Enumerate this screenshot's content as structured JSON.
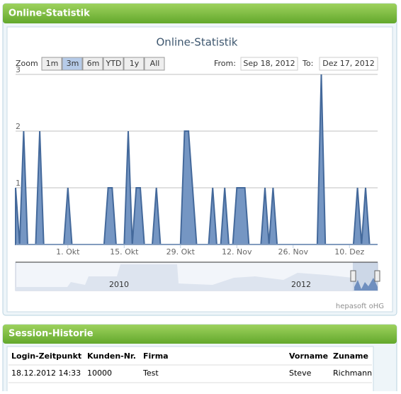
{
  "panels": {
    "statistik": "Online-Statistik",
    "historie": "Session-Historie"
  },
  "range_selector": {
    "zoom_label": "Zoom",
    "buttons": [
      "1m",
      "3m",
      "6m",
      "YTD",
      "1y",
      "All"
    ],
    "selected": "3m",
    "from_label": "From:",
    "from": "Sep 18, 2012",
    "to_label": "To:",
    "to": "Dez 17, 2012"
  },
  "navigator": {
    "labels": [
      "2010",
      "2012"
    ]
  },
  "credits": "hepasoft oHG",
  "chart_data": {
    "type": "area",
    "title": "Online-Statistik",
    "color": "#7596c3",
    "line_color": "#44699b",
    "grid": true,
    "x": [
      "2012-09-18",
      "2012-09-19",
      "2012-09-20",
      "2012-09-21",
      "2012-09-23",
      "2012-09-24",
      "2012-09-25",
      "2012-09-30",
      "2012-10-01",
      "2012-10-02",
      "2012-10-10",
      "2012-10-11",
      "2012-10-12",
      "2012-10-13",
      "2012-10-15",
      "2012-10-16",
      "2012-10-17",
      "2012-10-18",
      "2012-10-19",
      "2012-10-20",
      "2012-10-22",
      "2012-10-23",
      "2012-10-24",
      "2012-10-29",
      "2012-10-30",
      "2012-10-31",
      "2012-11-01",
      "2012-11-02",
      "2012-11-05",
      "2012-11-06",
      "2012-11-07",
      "2012-11-08",
      "2012-11-09",
      "2012-11-10",
      "2012-11-11",
      "2012-11-12",
      "2012-11-13",
      "2012-11-14",
      "2012-11-15",
      "2012-11-18",
      "2012-11-19",
      "2012-11-20",
      "2012-11-21",
      "2012-11-22",
      "2012-12-02",
      "2012-12-03",
      "2012-12-04",
      "2012-12-11",
      "2012-12-12",
      "2012-12-13",
      "2012-12-14",
      "2012-12-15",
      "2012-12-17"
    ],
    "values": [
      1,
      0,
      2,
      0,
      0,
      2,
      0,
      0,
      1,
      0,
      0,
      1,
      1,
      0,
      0,
      2,
      0,
      1,
      1,
      0,
      0,
      1,
      0,
      0,
      2,
      2,
      1,
      0,
      0,
      1,
      0,
      0,
      1,
      0,
      0,
      1,
      1,
      1,
      0,
      0,
      1,
      0,
      1,
      0,
      0,
      3,
      0,
      0,
      1,
      0,
      1,
      0,
      0
    ],
    "xlim": [
      "2012-09-18",
      "2012-12-17"
    ],
    "xticks": [
      {
        "value": "2012-10-01",
        "label": "1. Okt"
      },
      {
        "value": "2012-10-15",
        "label": "15. Okt"
      },
      {
        "value": "2012-10-29",
        "label": "29. Okt"
      },
      {
        "value": "2012-11-12",
        "label": "12. Nov"
      },
      {
        "value": "2012-11-26",
        "label": "26. Nov"
      },
      {
        "value": "2012-12-10",
        "label": "10. Dez"
      }
    ],
    "ylim": [
      0,
      3
    ],
    "yticks": [
      1,
      2,
      3
    ]
  },
  "table": {
    "header": [
      "Login-Zeitpunkt",
      "Kunden-Nr.",
      "Firma",
      "Vorname",
      "Zuname"
    ],
    "rows": [
      [
        "18.12.2012 14:33",
        "10000",
        "Test",
        "Steve",
        "Richmann"
      ]
    ]
  }
}
